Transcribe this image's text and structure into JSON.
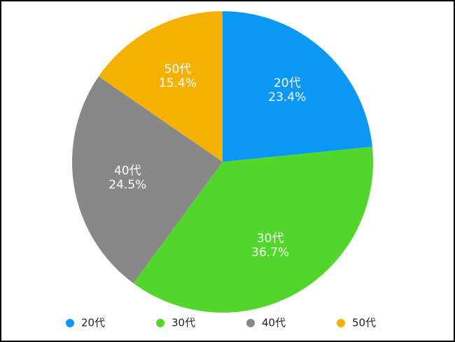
{
  "chart_data": {
    "type": "pie",
    "categories": [
      "20代",
      "30代",
      "40代",
      "50代"
    ],
    "values": [
      23.4,
      36.7,
      24.5,
      15.4
    ],
    "value_labels": [
      "23.4%",
      "36.7%",
      "24.5%",
      "15.4%"
    ],
    "colors": [
      "#0b97f4",
      "#53d62b",
      "#888888",
      "#f5b102"
    ],
    "legend": "bottom"
  }
}
